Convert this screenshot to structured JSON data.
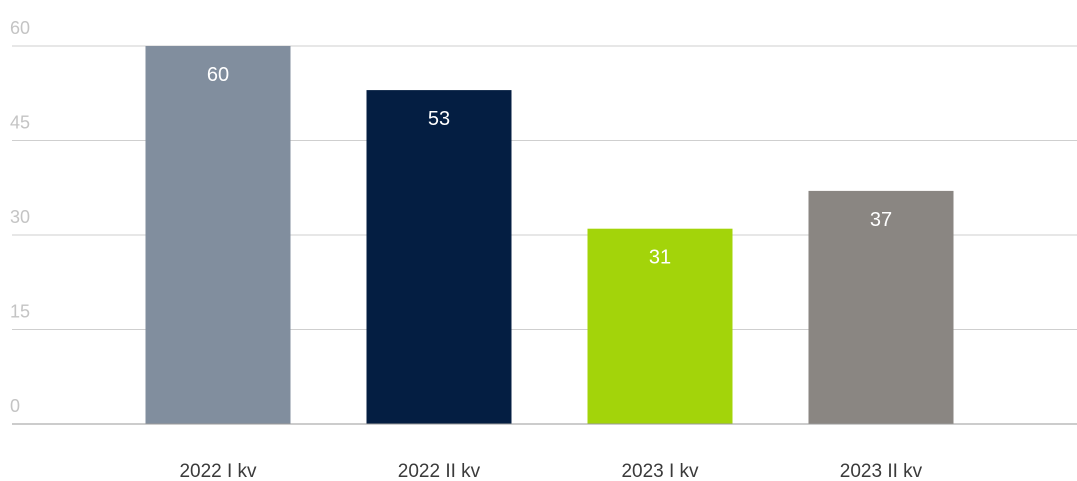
{
  "chart_data": {
    "type": "bar",
    "categories": [
      "2022 I kv",
      "2022 II kv",
      "2023 I kv",
      "2023 II kv"
    ],
    "values": [
      60,
      53,
      31,
      37
    ],
    "data_labels": [
      "60",
      "53",
      "31",
      "37"
    ],
    "colors": [
      "#818e9e",
      "#041e42",
      "#a3d40a",
      "#8a8682"
    ],
    "title": "",
    "xlabel": "",
    "ylabel": "",
    "ylim": [
      0,
      60
    ],
    "y_ticks": [
      0,
      15,
      30,
      45,
      60
    ],
    "y_tick_labels": [
      "0",
      "15",
      "30",
      "45",
      "60"
    ],
    "grid": true,
    "legend": "none"
  }
}
